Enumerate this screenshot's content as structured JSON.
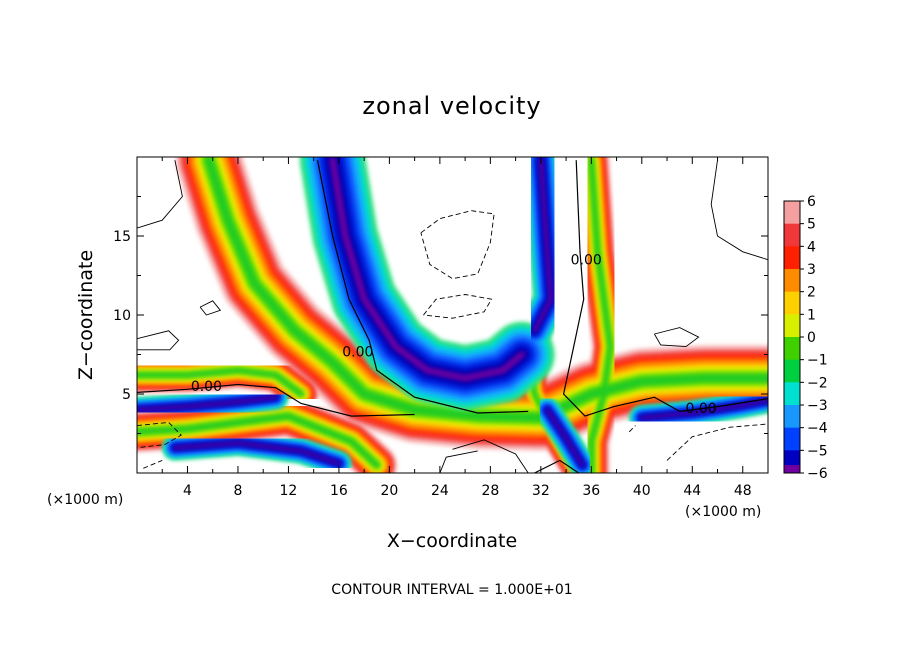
{
  "chart_data": {
    "type": "heatmap",
    "title": "zonal velocity",
    "xlabel": "X−coordinate",
    "ylabel": "Z−coordinate",
    "x_unit_label": "(×1000 m)",
    "z_unit_label": "(×1000 m)",
    "xlim": [
      0,
      50
    ],
    "zlim": [
      0,
      20
    ],
    "x_ticks": [
      4,
      8,
      12,
      16,
      20,
      24,
      28,
      32,
      36,
      40,
      44,
      48
    ],
    "z_ticks": [
      5,
      10,
      15
    ],
    "x_tick_labels": [
      "4",
      "8",
      "12",
      "16",
      "20",
      "24",
      "28",
      "32",
      "36",
      "40",
      "44",
      "48"
    ],
    "z_tick_labels": [
      "5",
      "10",
      "15"
    ],
    "colorbar": {
      "levels": [
        6,
        5,
        4,
        3,
        2,
        1,
        0,
        -1,
        -2,
        -3,
        -4,
        -5,
        -6
      ],
      "level_labels": [
        "6",
        "5",
        "4",
        "3",
        "2",
        "1",
        "0",
        "−1",
        "−2",
        "−3",
        "−4",
        "−5",
        "−6"
      ],
      "colors": [
        "#f5a0a0",
        "#f03838",
        "#ff2000",
        "#ff8c00",
        "#ffd000",
        "#d8f000",
        "#40d000",
        "#00d040",
        "#00e0d0",
        "#1898ff",
        "#0040ff",
        "#0000c0",
        "#7000a0"
      ]
    },
    "contour_interval_text": "CONTOUR INTERVAL = 1.000E+01",
    "contour_labels": [
      {
        "text": "0.00",
        "x": 17.5,
        "z": 7.7
      },
      {
        "text": "0.00",
        "x": 5.5,
        "z": 5.5
      },
      {
        "text": "0.00",
        "x": 35.6,
        "z": 13.5
      },
      {
        "text": "0.00",
        "x": 44.7,
        "z": 4.1
      }
    ],
    "features": [
      {
        "kind": "positive_band",
        "path": [
          [
            5.7,
            19.8
          ],
          [
            7.2,
            16
          ],
          [
            9.3,
            12
          ],
          [
            12.5,
            9
          ],
          [
            15.5,
            7
          ],
          [
            18,
            5
          ],
          [
            22,
            4
          ],
          [
            27,
            3.6
          ],
          [
            32,
            3.5
          ],
          [
            36,
            5
          ],
          [
            40,
            5.8
          ],
          [
            45,
            6
          ],
          [
            50,
            6
          ]
        ],
        "width": 2.6
      },
      {
        "kind": "positive_band",
        "path": [
          [
            0,
            6.2
          ],
          [
            4,
            6.2
          ],
          [
            8,
            6.5
          ],
          [
            11,
            6.2
          ],
          [
            13,
            5
          ]
        ],
        "width": 1.4
      },
      {
        "kind": "positive_band",
        "path": [
          [
            0,
            2.6
          ],
          [
            4,
            2.8
          ],
          [
            8,
            3.2
          ],
          [
            12,
            3.6
          ],
          [
            17,
            2
          ],
          [
            19,
            0.5
          ]
        ],
        "width": 1.6
      },
      {
        "kind": "positive_band",
        "path": [
          [
            36,
            19.8
          ],
          [
            36.5,
            14
          ],
          [
            37,
            11
          ],
          [
            37.5,
            8
          ],
          [
            37,
            5
          ],
          [
            36,
            2
          ],
          [
            36,
            0
          ]
        ],
        "width": 1.4
      },
      {
        "kind": "positive_band",
        "path": [
          [
            31,
            8
          ],
          [
            31.5,
            5
          ],
          [
            33.5,
            2
          ],
          [
            35,
            0
          ]
        ],
        "width": 1.2
      },
      {
        "kind": "negative_band",
        "path": [
          [
            15.5,
            19.8
          ],
          [
            16.5,
            15
          ],
          [
            18,
            11
          ],
          [
            20.5,
            8
          ],
          [
            23,
            6.5
          ],
          [
            26,
            6
          ],
          [
            29,
            6.5
          ],
          [
            30.5,
            7.5
          ]
        ],
        "width": 2.6
      },
      {
        "kind": "negative_band",
        "path": [
          [
            32,
            19.8
          ],
          [
            32.5,
            14
          ],
          [
            32.8,
            11
          ],
          [
            31.5,
            9
          ]
        ],
        "width": 1.4
      },
      {
        "kind": "negative_band",
        "path": [
          [
            0,
            4
          ],
          [
            4,
            4.2
          ],
          [
            8,
            4.5
          ],
          [
            11,
            4.8
          ]
        ],
        "width": 1.0
      },
      {
        "kind": "negative_band",
        "path": [
          [
            3,
            1.6
          ],
          [
            8,
            1.9
          ],
          [
            13,
            1.4
          ],
          [
            16,
            0.6
          ]
        ],
        "width": 1.0
      },
      {
        "kind": "negative_band",
        "path": [
          [
            32.5,
            4
          ],
          [
            34,
            2.2
          ],
          [
            35.3,
            0.5
          ]
        ],
        "width": 1.0
      },
      {
        "kind": "negative_band",
        "path": [
          [
            40,
            3.5
          ],
          [
            44,
            3.8
          ],
          [
            48,
            4.3
          ],
          [
            50,
            4.6
          ]
        ],
        "width": 1.0
      }
    ]
  }
}
